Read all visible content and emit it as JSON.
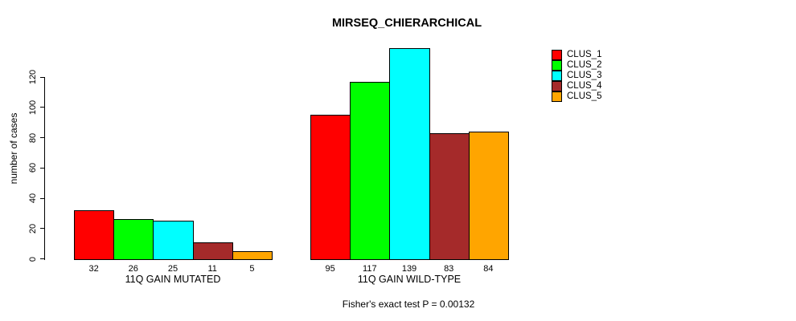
{
  "chart_data": {
    "type": "bar",
    "title": "MIRSEQ_CHIERARCHICAL",
    "ylabel": "number of cases",
    "xlabel": "",
    "ylim": [
      0,
      120
    ],
    "yticks": [
      0,
      20,
      40,
      60,
      80,
      100,
      120
    ],
    "grid": false,
    "legend_position": "right",
    "bars_exceed_axis": true,
    "categories": [
      "11Q GAIN MUTATED",
      "11Q GAIN WILD-TYPE"
    ],
    "groups": [
      {
        "label": "11Q GAIN MUTATED",
        "values": [
          32,
          26,
          25,
          11,
          5
        ]
      },
      {
        "label": "11Q GAIN WILD-TYPE",
        "values": [
          95,
          117,
          139,
          83,
          84
        ]
      }
    ],
    "series": [
      {
        "name": "CLUS_1",
        "color": "#ff0000",
        "values": [
          32,
          95
        ]
      },
      {
        "name": "CLUS_2",
        "color": "#00ff00",
        "values": [
          26,
          117
        ]
      },
      {
        "name": "CLUS_3",
        "color": "#00ffff",
        "values": [
          25,
          139
        ]
      },
      {
        "name": "CLUS_4",
        "color": "#a52a2a",
        "values": [
          11,
          83
        ]
      },
      {
        "name": "CLUS_5",
        "color": "#ffa500",
        "values": [
          5,
          84
        ]
      }
    ],
    "legend": [
      {
        "label": "CLUS_1",
        "color": "#ff0000"
      },
      {
        "label": "CLUS_2",
        "color": "#00ff00"
      },
      {
        "label": "CLUS_3",
        "color": "#00ffff"
      },
      {
        "label": "CLUS_4",
        "color": "#a52a2a"
      },
      {
        "label": "CLUS_5",
        "color": "#ffa500"
      }
    ],
    "value_labels_under_bars": true,
    "annotation": "Fisher's exact test P = 0.00132",
    "axis_color": "#000000",
    "background_color": "#ffffff"
  }
}
